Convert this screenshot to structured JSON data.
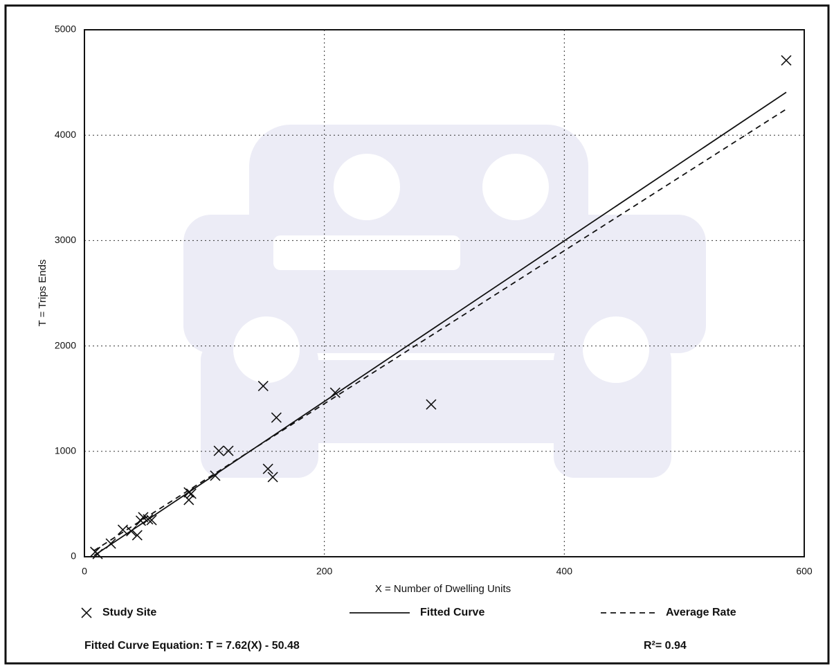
{
  "chart_data": {
    "type": "scatter",
    "x_label": "X = Number of Dwelling Units",
    "y_label": "T = Trips Ends",
    "xlim": [
      0,
      600
    ],
    "xticks": [
      0,
      200,
      400,
      600
    ],
    "ylim": [
      0,
      5000
    ],
    "yticks": [
      0,
      1000,
      2000,
      3000,
      4000,
      5000
    ],
    "grid": true,
    "series": [
      {
        "name": "Study Site",
        "marker": "x",
        "color": "#111111",
        "x": [
          585,
          149,
          209,
          289,
          160,
          112,
          120,
          153,
          157,
          109,
          87,
          87,
          89,
          49,
          53,
          56,
          47,
          32,
          39,
          44,
          22,
          9,
          11
        ],
        "values": [
          4710,
          1620,
          1557,
          1445,
          1320,
          1005,
          1005,
          834,
          756,
          769,
          611,
          539,
          598,
          375,
          355,
          348,
          342,
          256,
          243,
          204,
          125,
          46,
          26
        ]
      },
      {
        "name": "Fitted Curve",
        "line_style": "solid",
        "color": "#111111",
        "x": [
          8,
          585
        ],
        "values": [
          10.5,
          4407.2
        ]
      },
      {
        "name": "Average Rate",
        "line_style": "dashed",
        "color": "#111111",
        "x": [
          8,
          585
        ],
        "values": [
          58,
          4247
        ]
      }
    ],
    "equation": "Fitted Curve Equation: T = 7.62(X) - 50.48",
    "r_squared": "R²= 0.94"
  }
}
